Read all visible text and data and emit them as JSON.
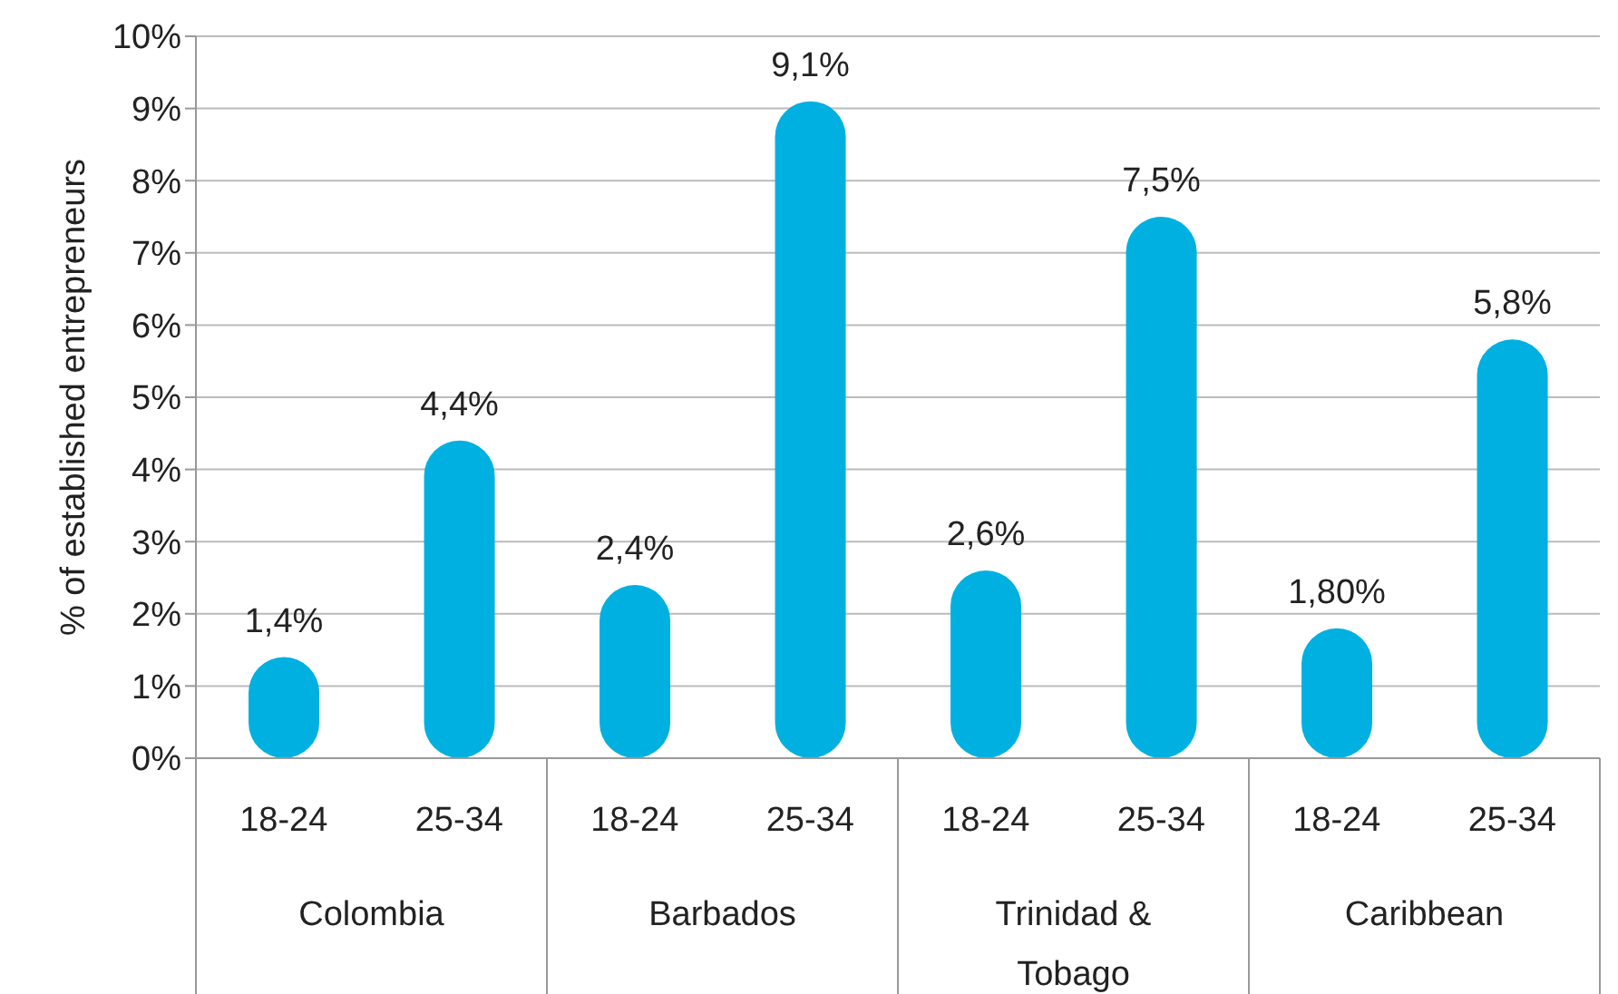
{
  "chart_data": {
    "type": "bar",
    "ylabel": "% of established entrepreneurs",
    "categories": [
      "18-24",
      "25-34",
      "18-24",
      "25-34",
      "18-24",
      "25-34",
      "18-24",
      "25-34"
    ],
    "values": [
      1.4,
      4.4,
      2.4,
      9.1,
      2.6,
      7.5,
      1.8,
      5.8
    ],
    "value_labels": [
      "1,4%",
      "4,4%",
      "2,4%",
      "9,1%",
      "2,6%",
      "7,5%",
      "1,80%",
      "5,8%"
    ],
    "color": "#00b0e0",
    "annotations": [
      "Colombia",
      "Barbados",
      "Trinidad & Tobago",
      "Caribbean"
    ],
    "ylim": [
      0,
      10
    ],
    "yticks": [
      {
        "value": 0,
        "label": "0%"
      },
      {
        "value": 1,
        "label": "1%"
      },
      {
        "value": 2,
        "label": "2%"
      },
      {
        "value": 3,
        "label": "3%"
      },
      {
        "value": 4,
        "label": "4%"
      },
      {
        "value": 5,
        "label": "5%"
      },
      {
        "value": 6,
        "label": "6%"
      },
      {
        "value": 7,
        "label": "7%"
      },
      {
        "value": 8,
        "label": "8%"
      },
      {
        "value": 9,
        "label": "9%"
      },
      {
        "value": 10,
        "label": "10%"
      }
    ],
    "grid": "y",
    "legend": false
  }
}
